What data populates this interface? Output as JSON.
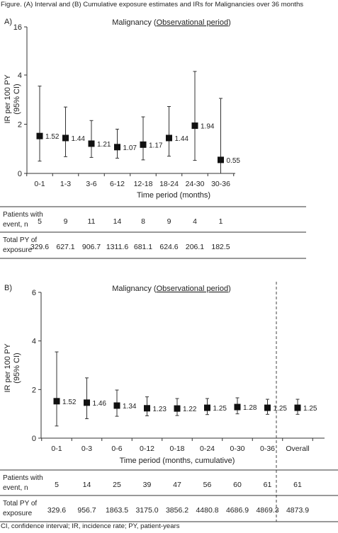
{
  "figure_title": "Figure. (A) Interval and (B) Cumulative exposure estimates and IRs for Malignancies over 36 months",
  "footnote": "CI, confidence interval; IR, incidence rate; PY, patient-years",
  "colors": {
    "axis": "#333333",
    "marker": "#111111",
    "text": "#222222",
    "divider": "#444444"
  },
  "chart_data": [
    {
      "type": "scatter",
      "panel_label": "A)",
      "title_prefix": "Malignancy (",
      "title_underlined": "Observational period",
      "title_suffix": ")",
      "ylabel": "IR per 100 PY",
      "ylabel2": "(95% CI)",
      "xlabel": "Time period (months)",
      "ylim": [
        0,
        16
      ],
      "yticks_log": [
        0,
        2,
        4,
        16
      ],
      "y_scale": "log-like",
      "categories": [
        "0-1",
        "1-3",
        "3-6",
        "6-12",
        "12-18",
        "18-24",
        "24-30",
        "30-36"
      ],
      "values": [
        1.52,
        1.44,
        1.21,
        1.07,
        1.17,
        1.44,
        1.94,
        0.55
      ],
      "value_labels": [
        "1.52",
        "1.44",
        "1.21",
        "1.07",
        "1.17",
        "1.44",
        "1.94",
        "0.55"
      ],
      "ci_lower": [
        0.5,
        0.68,
        0.65,
        0.62,
        0.55,
        0.7,
        0.53,
        0.0
      ],
      "ci_upper": [
        3.55,
        2.7,
        2.15,
        1.8,
        2.3,
        2.72,
        4.9,
        3.05
      ],
      "table": {
        "rows": [
          {
            "label1": "Patients with",
            "label2": "event, n",
            "values": [
              "5",
              "9",
              "11",
              "14",
              "8",
              "9",
              "4",
              "1"
            ]
          },
          {
            "label1": "Total PY of",
            "label2": "exposure",
            "values": [
              "329.6",
              "627.1",
              "906.7",
              "1311.6",
              "681.1",
              "624.6",
              "206.1",
              "182.5"
            ]
          }
        ]
      }
    },
    {
      "type": "scatter",
      "panel_label": "B)",
      "title_prefix": "Malignancy (",
      "title_underlined": "Observational period",
      "title_suffix": ")",
      "ylabel": "IR per 100 PY",
      "ylabel2": "(95% CI)",
      "xlabel": "Time period (months, cumulative)",
      "ylim": [
        0,
        6
      ],
      "yticks": [
        0,
        2,
        4,
        6
      ],
      "categories": [
        "0-1",
        "0-3",
        "0-6",
        "0-12",
        "0-18",
        "0-24",
        "0-30",
        "0-36",
        "Overall"
      ],
      "values": [
        1.52,
        1.46,
        1.34,
        1.23,
        1.22,
        1.25,
        1.28,
        1.25,
        1.25
      ],
      "value_labels": [
        "1.52",
        "1.46",
        "1.34",
        "1.23",
        "1.22",
        "1.25",
        "1.28",
        "1.25",
        "1.25"
      ],
      "ci_lower": [
        0.5,
        0.8,
        0.9,
        0.92,
        0.93,
        0.97,
        1.0,
        0.98,
        0.98
      ],
      "ci_upper": [
        3.55,
        2.48,
        1.98,
        1.7,
        1.63,
        1.63,
        1.66,
        1.6,
        1.6
      ],
      "table": {
        "rows": [
          {
            "label1": "Patients with",
            "label2": "event, n",
            "values": [
              "5",
              "14",
              "25",
              "39",
              "47",
              "56",
              "60",
              "61",
              "61"
            ]
          },
          {
            "label1": "Total PY of",
            "label2": "exposure",
            "values": [
              "329.6",
              "956.7",
              "1863.5",
              "3175.0",
              "3856.2",
              "4480.8",
              "4686.9",
              "4869.3",
              "4873.9"
            ]
          }
        ]
      }
    }
  ]
}
